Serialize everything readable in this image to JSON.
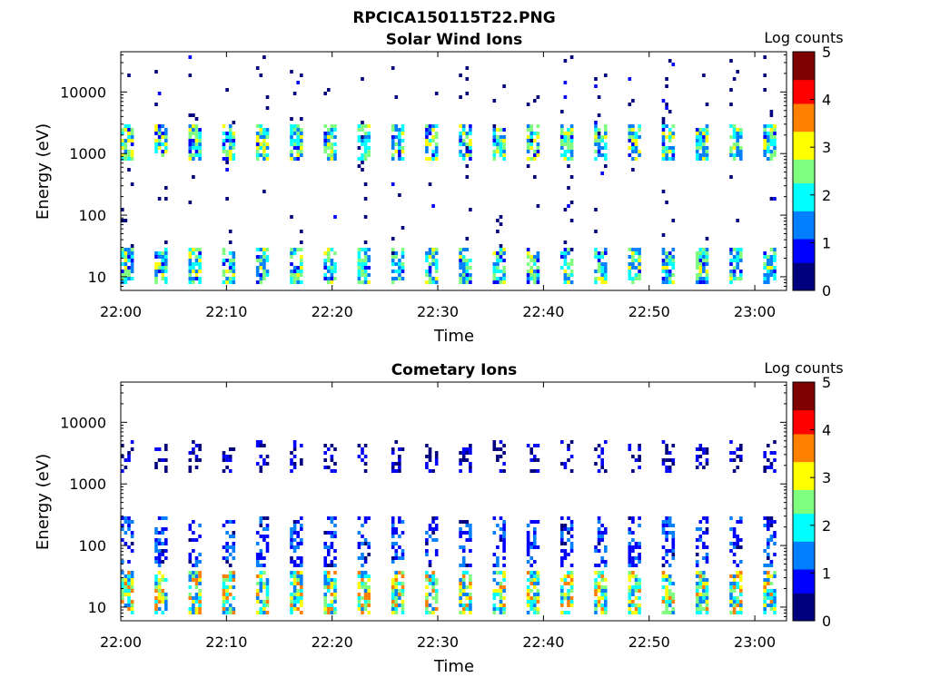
{
  "figure_title": "RPCICA150115T22.PNG",
  "colormap": [
    "#00007f",
    "#0000ff",
    "#007fff",
    "#00ffff",
    "#7fff7f",
    "#ffff00",
    "#ff7f00",
    "#ff0000",
    "#7f0000"
  ],
  "chart_data": [
    {
      "type": "heatmap",
      "title": "Solar Wind Ions",
      "xlabel": "Time",
      "ylabel": "Energy (eV)",
      "x_range": [
        "22:00",
        "23:03"
      ],
      "x_ticks": [
        "22:00",
        "22:10",
        "22:20",
        "22:30",
        "22:40",
        "22:50",
        "23:00"
      ],
      "y_scale": "log",
      "ylim": [
        6,
        45000
      ],
      "y_ticks": [
        {
          "label": "10",
          "value": 10
        },
        {
          "label": "100",
          "value": 100
        },
        {
          "label": "1000",
          "value": 1000
        },
        {
          "label": "10000",
          "value": 10000
        }
      ],
      "colorbar": {
        "label": "Log counts",
        "range": [
          0,
          5
        ],
        "ticks": [
          "0",
          "1",
          "2",
          "3",
          "4",
          "5"
        ]
      },
      "sweep_start_minutes": [
        0.0,
        3.2,
        6.4,
        9.6,
        12.8,
        16.0,
        19.2,
        22.4,
        25.6,
        28.8,
        32.0,
        35.2,
        38.4,
        41.6,
        44.8,
        48.0,
        51.2,
        54.4,
        57.6,
        60.8
      ],
      "bands": [
        {
          "name": "low-energy",
          "e_min": 7,
          "e_max": 28,
          "max_log_counts": 3.0
        },
        {
          "name": "solar-wind-peak",
          "e_min": 700,
          "e_max": 3000,
          "max_log_counts": 3.2
        },
        {
          "name": "sparse-background",
          "e_min": 20,
          "e_max": 40000,
          "max_log_counts": 0.6
        }
      ]
    },
    {
      "type": "heatmap",
      "title": "Cometary Ions",
      "xlabel": "Time",
      "ylabel": "Energy (eV)",
      "x_range": [
        "22:00",
        "23:03"
      ],
      "x_ticks": [
        "22:00",
        "22:10",
        "22:20",
        "22:30",
        "22:40",
        "22:50",
        "23:00"
      ],
      "y_scale": "log",
      "ylim": [
        6,
        45000
      ],
      "y_ticks": [
        {
          "label": "10",
          "value": 10
        },
        {
          "label": "100",
          "value": 100
        },
        {
          "label": "1000",
          "value": 1000
        },
        {
          "label": "10000",
          "value": 10000
        }
      ],
      "colorbar": {
        "label": "Log counts",
        "range": [
          0,
          5
        ],
        "ticks": [
          "0",
          "1",
          "2",
          "3",
          "4",
          "5"
        ]
      },
      "sweep_start_minutes": [
        0.0,
        3.2,
        6.4,
        9.6,
        12.8,
        16.0,
        19.2,
        22.4,
        25.6,
        28.8,
        32.0,
        35.2,
        38.4,
        41.6,
        44.8,
        48.0,
        51.2,
        54.4,
        57.6,
        60.8
      ],
      "bands": [
        {
          "name": "low-energy",
          "e_min": 7,
          "e_max": 35,
          "max_log_counts": 3.8
        },
        {
          "name": "mid-energy",
          "e_min": 40,
          "e_max": 300,
          "max_log_counts": 1.5
        },
        {
          "name": "high-energy-tail",
          "e_min": 1500,
          "e_max": 5000,
          "max_log_counts": 0.8
        }
      ]
    }
  ]
}
